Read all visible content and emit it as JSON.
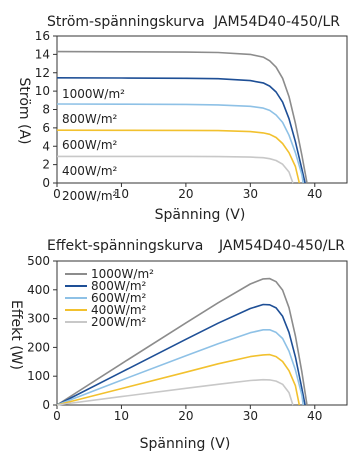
{
  "chart_data": [
    {
      "type": "line",
      "title": "Ström-spänningskurva",
      "subtitle": "JAM54D40-450/LR",
      "xlabel": "Spänning (V)",
      "ylabel": "Ström (A)",
      "xlim": [
        0,
        45
      ],
      "ylim": [
        0,
        16
      ],
      "xticks": [
        "0",
        "10",
        "20",
        "30",
        "40"
      ],
      "yticks": [
        "0",
        "2",
        "4",
        "6",
        "8",
        "10",
        "12",
        "14",
        "16"
      ],
      "grid": false,
      "legend": "inline labels on curves",
      "series": [
        {
          "name": "1000W/m²",
          "color": "#8c8c8c",
          "x": [
            0,
            10,
            20,
            25,
            30,
            32,
            33,
            34,
            35,
            36,
            37,
            38,
            38.8
          ],
          "y": [
            14.3,
            14.28,
            14.25,
            14.2,
            14.0,
            13.7,
            13.3,
            12.6,
            11.4,
            9.4,
            6.5,
            3.0,
            0
          ]
        },
        {
          "name": "800W/m²",
          "color": "#1e4f96",
          "x": [
            0,
            10,
            20,
            25,
            30,
            32,
            33,
            34,
            35,
            36,
            37,
            38,
            38.5
          ],
          "y": [
            11.45,
            11.43,
            11.4,
            11.35,
            11.15,
            10.9,
            10.55,
            9.9,
            8.8,
            7.0,
            4.5,
            1.5,
            0
          ]
        },
        {
          "name": "600W/m²",
          "color": "#8ec1e6",
          "x": [
            0,
            10,
            20,
            25,
            30,
            32,
            33,
            34,
            35,
            36,
            37,
            38,
            38.2
          ],
          "y": [
            8.6,
            8.58,
            8.55,
            8.5,
            8.35,
            8.15,
            7.9,
            7.4,
            6.6,
            5.2,
            3.3,
            0.9,
            0
          ]
        },
        {
          "name": "400W/m²",
          "color": "#f2c12e",
          "x": [
            0,
            10,
            20,
            25,
            30,
            32,
            33,
            34,
            35,
            36,
            37,
            37.6
          ],
          "y": [
            5.75,
            5.74,
            5.72,
            5.7,
            5.6,
            5.45,
            5.3,
            4.95,
            4.3,
            3.3,
            1.8,
            0
          ]
        },
        {
          "name": "200W/m²",
          "color": "#c8c8c8",
          "x": [
            0,
            10,
            20,
            25,
            30,
            32,
            33,
            34,
            35,
            36,
            36.6
          ],
          "y": [
            2.9,
            2.9,
            2.89,
            2.87,
            2.82,
            2.75,
            2.65,
            2.45,
            2.05,
            1.2,
            0
          ]
        }
      ]
    },
    {
      "type": "line",
      "title": "Effekt-spänningskurva",
      "subtitle": "JAM54D40-450/LR",
      "xlabel": "Spänning (V)",
      "ylabel": "Effekt (W)",
      "xlim": [
        0,
        45
      ],
      "ylim": [
        0,
        500
      ],
      "xticks": [
        "0",
        "10",
        "20",
        "30",
        "40"
      ],
      "yticks": [
        "0",
        "100",
        "200",
        "300",
        "400",
        "500"
      ],
      "grid": false,
      "legend": "top-left",
      "series": [
        {
          "name": "1000W/m²",
          "color": "#8c8c8c",
          "x": [
            0,
            10,
            20,
            25,
            30,
            32,
            33,
            34,
            35,
            36,
            37,
            38,
            38.8
          ],
          "y": [
            0,
            143,
            285,
            355,
            420,
            438,
            439,
            428,
            399,
            338,
            240,
            114,
            0
          ]
        },
        {
          "name": "800W/m²",
          "color": "#1e4f96",
          "x": [
            0,
            10,
            20,
            25,
            30,
            32,
            33,
            34,
            35,
            36,
            37,
            38,
            38.5
          ],
          "y": [
            0,
            114,
            228,
            284,
            335,
            349,
            348,
            337,
            308,
            252,
            167,
            57,
            0
          ]
        },
        {
          "name": "600W/m²",
          "color": "#8ec1e6",
          "x": [
            0,
            10,
            20,
            25,
            30,
            32,
            33,
            34,
            35,
            36,
            37,
            38,
            38.2
          ],
          "y": [
            0,
            86,
            171,
            213,
            251,
            261,
            261,
            252,
            231,
            187,
            122,
            34,
            0
          ]
        },
        {
          "name": "400W/m²",
          "color": "#f2c12e",
          "x": [
            0,
            10,
            20,
            25,
            30,
            32,
            33,
            34,
            35,
            36,
            37,
            37.6
          ],
          "y": [
            0,
            57,
            114,
            143,
            168,
            174,
            175,
            168,
            151,
            119,
            67,
            0
          ]
        },
        {
          "name": "200W/m²",
          "color": "#c8c8c8",
          "x": [
            0,
            10,
            20,
            25,
            30,
            32,
            33,
            34,
            35,
            36,
            36.6
          ],
          "y": [
            0,
            29,
            58,
            72,
            85,
            88,
            87,
            83,
            72,
            43,
            0
          ]
        }
      ]
    }
  ]
}
